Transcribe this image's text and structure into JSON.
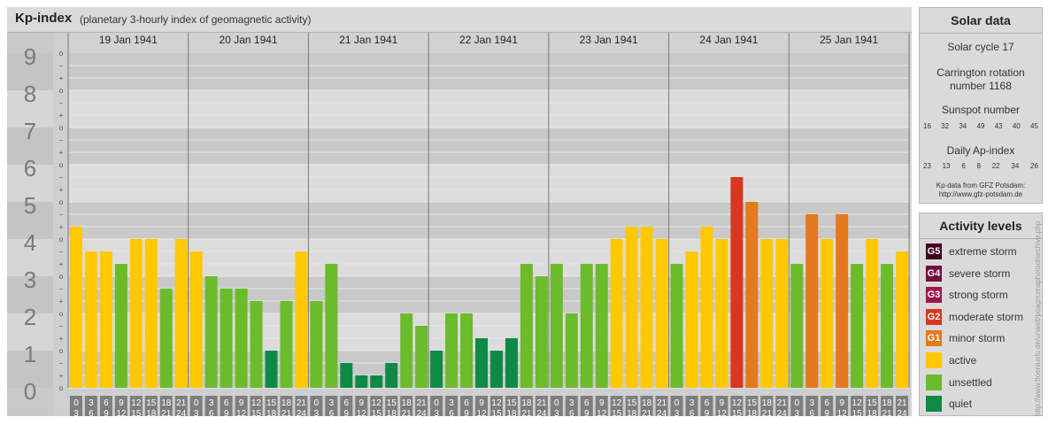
{
  "header": {
    "title": "Kp-index",
    "subtitle": "(planetary 3-hourly index of geomagnetic activity)"
  },
  "chart_data": {
    "type": "bar",
    "ylim": [
      0,
      9
    ],
    "y_major_ticks": [
      "0",
      "1",
      "2",
      "3",
      "4",
      "5",
      "6",
      "7",
      "8",
      "9"
    ],
    "y_minor_ticks": [
      "o",
      "+",
      "−"
    ],
    "days": [
      "19 Jan 1941",
      "20 Jan 1941",
      "21 Jan 1941",
      "22 Jan 1941",
      "23 Jan 1941",
      "24 Jan 1941",
      "25 Jan 1941"
    ],
    "interval_start_labels": [
      "0",
      "3",
      "6",
      "9",
      "12",
      "15",
      "18",
      "21"
    ],
    "interval_end_labels": [
      "3",
      "6",
      "9",
      "12",
      "15",
      "18",
      "21",
      "24"
    ],
    "values": [
      4.333,
      3.667,
      3.667,
      3.333,
      4.0,
      4.0,
      2.667,
      4.0,
      3.667,
      3.0,
      2.667,
      2.667,
      2.333,
      1.0,
      2.333,
      3.667,
      2.333,
      3.333,
      0.667,
      0.333,
      0.333,
      0.667,
      2.0,
      1.667,
      1.0,
      2.0,
      2.0,
      1.333,
      1.0,
      1.333,
      3.333,
      3.0,
      3.333,
      2.0,
      3.333,
      3.333,
      4.0,
      4.333,
      4.333,
      4.0,
      3.333,
      3.667,
      4.333,
      4.0,
      5.667,
      5.0,
      4.0,
      4.0,
      3.333,
      4.667,
      4.0,
      4.667,
      3.333,
      4.0,
      3.333,
      3.667
    ],
    "colors": {
      "quiet": "#0e8a45",
      "unsettled": "#6cbb2a",
      "active": "#ffc800",
      "G1": "#e47a1e",
      "G2": "#d8361e",
      "G3": "#a4144e",
      "G4": "#730d3e",
      "G5": "#42021e"
    }
  },
  "solar": {
    "title": "Solar data",
    "cycle": "Solar cycle 17",
    "carrington_line1": "Carrington rotation",
    "carrington_line2": "number 1168",
    "sunspot_label": "Sunspot number",
    "sunspot_values": [
      "16",
      "32",
      "34",
      "49",
      "43",
      "40",
      "45"
    ],
    "ap_label": "Daily Ap-index",
    "ap_values": [
      "23",
      "13",
      "6",
      "8",
      "22",
      "34",
      "26"
    ],
    "source_line1": "Kp-data from GFZ Potsdam:",
    "source_line2": "http://www.gfz-potsdam.de"
  },
  "activity": {
    "title": "Activity levels",
    "items": [
      {
        "code": "G5",
        "label": "extreme storm",
        "color": "#42021e"
      },
      {
        "code": "G4",
        "label": "severe storm",
        "color": "#730d3e"
      },
      {
        "code": "G3",
        "label": "strong storm",
        "color": "#a4144e"
      },
      {
        "code": "G2",
        "label": "moderate storm",
        "color": "#d8361e"
      },
      {
        "code": "G1",
        "label": "minor storm",
        "color": "#e47a1e"
      },
      {
        "code": "",
        "label": "active",
        "color": "#ffc800"
      },
      {
        "code": "",
        "label": "unsettled",
        "color": "#6cbb2a"
      },
      {
        "code": "",
        "label": "quiet",
        "color": "#0e8a45"
      }
    ]
  },
  "credit": "http://www.ftoeniusfu.de/unwelt/poagnumaphotool/archive.php"
}
